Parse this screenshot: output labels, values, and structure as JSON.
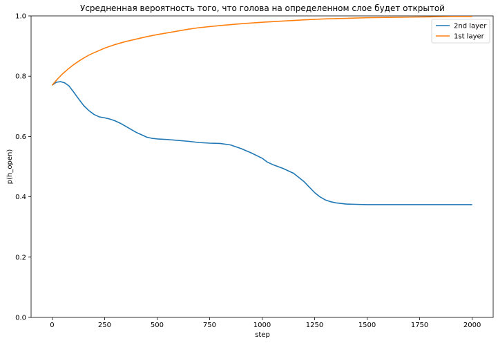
{
  "chart_data": {
    "type": "line",
    "title": "Усредненная вероятность того, что голова на определенном слое будет открытой",
    "xlabel": "step",
    "ylabel": "p(h_open)",
    "xlim": [
      -100,
      2100
    ],
    "ylim": [
      0.0,
      1.0
    ],
    "xticks": [
      0,
      250,
      500,
      750,
      1000,
      1250,
      1500,
      1750,
      2000
    ],
    "yticks": [
      0.0,
      0.2,
      0.4,
      0.6,
      0.8,
      1.0
    ],
    "xtick_labels": [
      "0",
      "250",
      "500",
      "750",
      "1000",
      "1250",
      "1500",
      "1750",
      "2000"
    ],
    "ytick_labels": [
      "0.0",
      "0.2",
      "0.4",
      "0.6",
      "0.8",
      "1.0"
    ],
    "legend_position": "top-right",
    "grid": false,
    "series": [
      {
        "name": "2nd layer",
        "color": "#1f77b4",
        "x": [
          0,
          20,
          40,
          60,
          80,
          100,
          125,
          150,
          175,
          200,
          225,
          250,
          275,
          300,
          325,
          350,
          375,
          400,
          425,
          450,
          475,
          500,
          550,
          600,
          650,
          700,
          750,
          800,
          850,
          900,
          950,
          1000,
          1025,
          1050,
          1100,
          1150,
          1200,
          1225,
          1250,
          1275,
          1300,
          1325,
          1350,
          1400,
          1450,
          1500,
          1600,
          1700,
          1800,
          1900,
          2000
        ],
        "y": [
          0.77,
          0.78,
          0.782,
          0.778,
          0.768,
          0.75,
          0.726,
          0.703,
          0.686,
          0.673,
          0.665,
          0.662,
          0.658,
          0.652,
          0.644,
          0.634,
          0.624,
          0.614,
          0.606,
          0.598,
          0.594,
          0.592,
          0.59,
          0.587,
          0.584,
          0.58,
          0.578,
          0.577,
          0.572,
          0.56,
          0.545,
          0.528,
          0.515,
          0.507,
          0.494,
          0.478,
          0.45,
          0.432,
          0.414,
          0.4,
          0.39,
          0.384,
          0.38,
          0.376,
          0.375,
          0.374,
          0.374,
          0.374,
          0.374,
          0.374,
          0.374
        ]
      },
      {
        "name": "1st layer",
        "color": "#ff7f0e",
        "x": [
          0,
          25,
          50,
          75,
          100,
          125,
          150,
          175,
          200,
          250,
          300,
          350,
          400,
          450,
          500,
          550,
          600,
          650,
          700,
          800,
          900,
          1000,
          1100,
          1200,
          1300,
          1400,
          1500,
          1600,
          1700,
          1800,
          1900,
          2000
        ],
        "y": [
          0.77,
          0.79,
          0.808,
          0.823,
          0.837,
          0.849,
          0.86,
          0.87,
          0.878,
          0.893,
          0.905,
          0.915,
          0.923,
          0.931,
          0.938,
          0.944,
          0.95,
          0.956,
          0.961,
          0.968,
          0.974,
          0.979,
          0.983,
          0.987,
          0.99,
          0.992,
          0.994,
          0.995,
          0.996,
          0.997,
          0.998,
          0.998
        ]
      }
    ]
  }
}
